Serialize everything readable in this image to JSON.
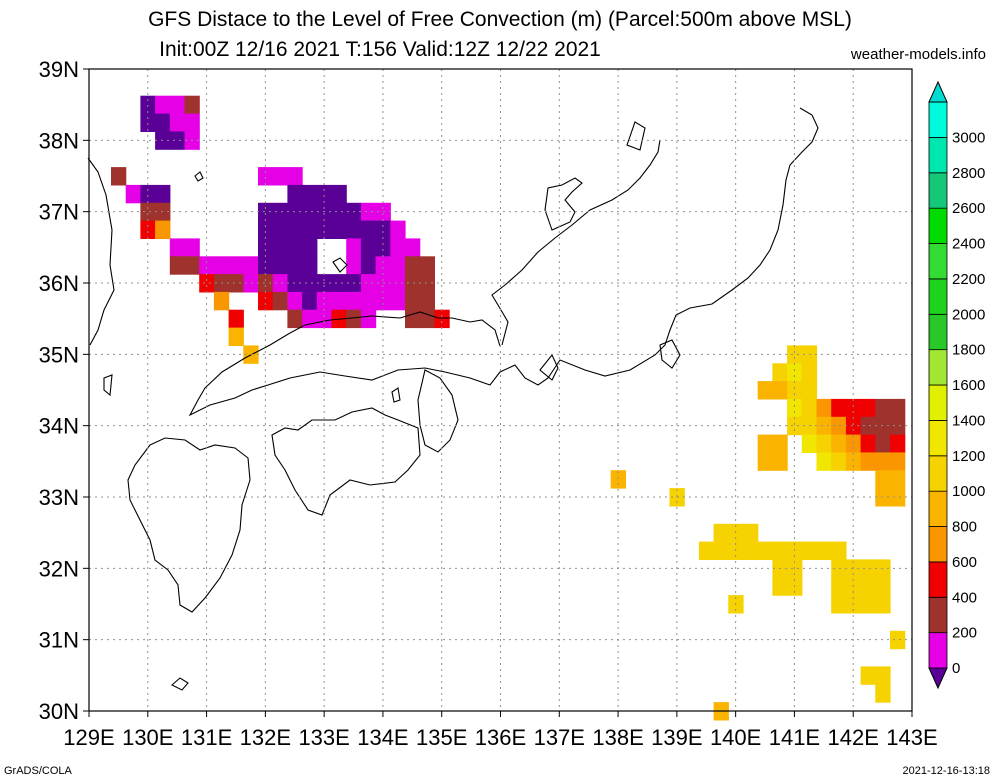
{
  "title_line1": "GFS Distace to the Level of Free Convection (m) (Parcel:500m above MSL)",
  "title_line2": "Init:00Z 12/16 2021 T:156 Valid:12Z 12/22 2021",
  "site": "weather-models.info",
  "footer_left": "GrADS/COLA",
  "footer_right": "2021-12-16-13:18",
  "lon_labels": [
    "129E",
    "130E",
    "131E",
    "132E",
    "133E",
    "134E",
    "135E",
    "136E",
    "137E",
    "138E",
    "139E",
    "140E",
    "141E",
    "142E",
    "143E"
  ],
  "lat_labels": [
    "30N",
    "31N",
    "32N",
    "33N",
    "34N",
    "35N",
    "36N",
    "37N",
    "38N",
    "39N"
  ],
  "colorbar": {
    "labels": [
      "0",
      "200",
      "400",
      "600",
      "800",
      "1000",
      "1200",
      "1400",
      "1600",
      "1800",
      "2000",
      "2200",
      "2400",
      "2600",
      "2800",
      "3000"
    ],
    "colors": [
      "#e600e6",
      "#a0322d",
      "#f00000",
      "#fa9600",
      "#fab400",
      "#f5d200",
      "#f0e600",
      "#e0f000",
      "#a0e632",
      "#28c828",
      "#1ed21e",
      "#32dc32",
      "#00dc00",
      "#14c878",
      "#00e6af",
      "#00fadc"
    ],
    "below_color": "#5a0096",
    "above_color": "#00dcd2"
  },
  "chart_data": {
    "type": "heatmap",
    "title": "GFS Distace to the Level of Free Convection (m) (Parcel:500m above MSL)",
    "subtitle": "Init:00Z 12/16 2021 T:156 Valid:12Z 12/22 2021",
    "xlim": [
      129,
      143
    ],
    "ylim": [
      30,
      39
    ],
    "grid": true,
    "units": "m",
    "cells": [
      {
        "lon": 130.0,
        "lat": 38.5,
        "v": -1
      },
      {
        "lon": 130.25,
        "lat": 38.5,
        "v": 100
      },
      {
        "lon": 130.5,
        "lat": 38.5,
        "v": 100
      },
      {
        "lon": 130.75,
        "lat": 38.5,
        "v": 300
      },
      {
        "lon": 130.0,
        "lat": 38.25,
        "v": -1
      },
      {
        "lon": 130.25,
        "lat": 38.25,
        "v": -1
      },
      {
        "lon": 130.5,
        "lat": 38.25,
        "v": 100
      },
      {
        "lon": 130.75,
        "lat": 38.25,
        "v": 100
      },
      {
        "lon": 130.25,
        "lat": 38.0,
        "v": -1
      },
      {
        "lon": 130.5,
        "lat": 38.0,
        "v": -1
      },
      {
        "lon": 130.75,
        "lat": 38.0,
        "v": 100
      },
      {
        "lon": 129.5,
        "lat": 37.5,
        "v": 300
      },
      {
        "lon": 129.75,
        "lat": 37.25,
        "v": 100
      },
      {
        "lon": 130.0,
        "lat": 37.25,
        "v": -1
      },
      {
        "lon": 130.25,
        "lat": 37.25,
        "v": -1
      },
      {
        "lon": 130.0,
        "lat": 37.0,
        "v": 300
      },
      {
        "lon": 130.25,
        "lat": 37.0,
        "v": 300
      },
      {
        "lon": 130.0,
        "lat": 36.75,
        "v": 500
      },
      {
        "lon": 130.25,
        "lat": 36.75,
        "v": 700
      },
      {
        "lon": 132.0,
        "lat": 37.5,
        "v": 100
      },
      {
        "lon": 132.25,
        "lat": 37.5,
        "v": 100
      },
      {
        "lon": 132.5,
        "lat": 37.5,
        "v": 100
      },
      {
        "lon": 132.5,
        "lat": 37.25,
        "v": -1
      },
      {
        "lon": 132.75,
        "lat": 37.25,
        "v": -1
      },
      {
        "lon": 133.0,
        "lat": 37.25,
        "v": -1
      },
      {
        "lon": 133.25,
        "lat": 37.25,
        "v": -1
      },
      {
        "lon": 132.0,
        "lat": 37.0,
        "v": -1
      },
      {
        "lon": 132.25,
        "lat": 37.0,
        "v": -1
      },
      {
        "lon": 132.5,
        "lat": 37.0,
        "v": -1
      },
      {
        "lon": 132.75,
        "lat": 37.0,
        "v": -1
      },
      {
        "lon": 133.0,
        "lat": 37.0,
        "v": -1
      },
      {
        "lon": 133.25,
        "lat": 37.0,
        "v": -1
      },
      {
        "lon": 133.5,
        "lat": 37.0,
        "v": -1
      },
      {
        "lon": 133.75,
        "lat": 37.0,
        "v": 100
      },
      {
        "lon": 134.0,
        "lat": 37.0,
        "v": 100
      },
      {
        "lon": 132.0,
        "lat": 36.75,
        "v": -1
      },
      {
        "lon": 132.25,
        "lat": 36.75,
        "v": -1
      },
      {
        "lon": 132.5,
        "lat": 36.75,
        "v": -1
      },
      {
        "lon": 132.75,
        "lat": 36.75,
        "v": -1
      },
      {
        "lon": 133.0,
        "lat": 36.75,
        "v": -1
      },
      {
        "lon": 133.25,
        "lat": 36.75,
        "v": -1
      },
      {
        "lon": 133.5,
        "lat": 36.75,
        "v": -1
      },
      {
        "lon": 133.75,
        "lat": 36.75,
        "v": -1
      },
      {
        "lon": 134.0,
        "lat": 36.75,
        "v": -1
      },
      {
        "lon": 134.25,
        "lat": 36.75,
        "v": 100
      },
      {
        "lon": 130.5,
        "lat": 36.5,
        "v": 100
      },
      {
        "lon": 130.75,
        "lat": 36.5,
        "v": 100
      },
      {
        "lon": 132.0,
        "lat": 36.5,
        "v": -1
      },
      {
        "lon": 132.25,
        "lat": 36.5,
        "v": -1
      },
      {
        "lon": 132.5,
        "lat": 36.5,
        "v": -1
      },
      {
        "lon": 132.75,
        "lat": 36.5,
        "v": -1
      },
      {
        "lon": 133.5,
        "lat": 36.5,
        "v": 100
      },
      {
        "lon": 133.75,
        "lat": 36.5,
        "v": -1
      },
      {
        "lon": 134.0,
        "lat": 36.5,
        "v": -1
      },
      {
        "lon": 134.25,
        "lat": 36.5,
        "v": 100
      },
      {
        "lon": 134.5,
        "lat": 36.5,
        "v": 100
      },
      {
        "lon": 130.5,
        "lat": 36.25,
        "v": 300
      },
      {
        "lon": 130.75,
        "lat": 36.25,
        "v": 300
      },
      {
        "lon": 131.0,
        "lat": 36.25,
        "v": 100
      },
      {
        "lon": 131.25,
        "lat": 36.25,
        "v": 100
      },
      {
        "lon": 131.5,
        "lat": 36.25,
        "v": 100
      },
      {
        "lon": 131.75,
        "lat": 36.25,
        "v": 100
      },
      {
        "lon": 132.0,
        "lat": 36.25,
        "v": -1
      },
      {
        "lon": 132.25,
        "lat": 36.25,
        "v": -1
      },
      {
        "lon": 132.5,
        "lat": 36.25,
        "v": -1
      },
      {
        "lon": 132.75,
        "lat": 36.25,
        "v": -1
      },
      {
        "lon": 133.5,
        "lat": 36.25,
        "v": 100
      },
      {
        "lon": 133.75,
        "lat": 36.25,
        "v": -1
      },
      {
        "lon": 134.0,
        "lat": 36.25,
        "v": 100
      },
      {
        "lon": 134.25,
        "lat": 36.25,
        "v": 100
      },
      {
        "lon": 134.5,
        "lat": 36.25,
        "v": 300
      },
      {
        "lon": 134.75,
        "lat": 36.25,
        "v": 300
      },
      {
        "lon": 131.0,
        "lat": 36.0,
        "v": 500
      },
      {
        "lon": 131.25,
        "lat": 36.0,
        "v": 300
      },
      {
        "lon": 131.5,
        "lat": 36.0,
        "v": 300
      },
      {
        "lon": 131.75,
        "lat": 36.0,
        "v": 100
      },
      {
        "lon": 132.0,
        "lat": 36.0,
        "v": 300
      },
      {
        "lon": 132.25,
        "lat": 36.0,
        "v": 100
      },
      {
        "lon": 132.5,
        "lat": 36.0,
        "v": -1
      },
      {
        "lon": 132.75,
        "lat": 36.0,
        "v": -1
      },
      {
        "lon": 133.0,
        "lat": 36.0,
        "v": -1
      },
      {
        "lon": 133.25,
        "lat": 36.0,
        "v": -1
      },
      {
        "lon": 133.5,
        "lat": 36.0,
        "v": -1
      },
      {
        "lon": 133.75,
        "lat": 36.0,
        "v": 100
      },
      {
        "lon": 134.0,
        "lat": 36.0,
        "v": 100
      },
      {
        "lon": 134.25,
        "lat": 36.0,
        "v": 100
      },
      {
        "lon": 134.5,
        "lat": 36.0,
        "v": 300
      },
      {
        "lon": 134.75,
        "lat": 36.0,
        "v": 300
      },
      {
        "lon": 131.25,
        "lat": 35.75,
        "v": 700
      },
      {
        "lon": 132.0,
        "lat": 35.75,
        "v": 500
      },
      {
        "lon": 132.25,
        "lat": 35.75,
        "v": 300
      },
      {
        "lon": 132.5,
        "lat": 35.75,
        "v": 100
      },
      {
        "lon": 132.75,
        "lat": 35.75,
        "v": -1
      },
      {
        "lon": 133.0,
        "lat": 35.75,
        "v": 100
      },
      {
        "lon": 133.25,
        "lat": 35.75,
        "v": 100
      },
      {
        "lon": 133.5,
        "lat": 35.75,
        "v": 100
      },
      {
        "lon": 133.75,
        "lat": 35.75,
        "v": 100
      },
      {
        "lon": 134.0,
        "lat": 35.75,
        "v": 100
      },
      {
        "lon": 134.25,
        "lat": 35.75,
        "v": 100
      },
      {
        "lon": 134.5,
        "lat": 35.75,
        "v": 300
      },
      {
        "lon": 134.75,
        "lat": 35.75,
        "v": 300
      },
      {
        "lon": 132.5,
        "lat": 35.5,
        "v": 300
      },
      {
        "lon": 132.75,
        "lat": 35.5,
        "v": 100
      },
      {
        "lon": 133.0,
        "lat": 35.5,
        "v": 100
      },
      {
        "lon": 133.25,
        "lat": 35.5,
        "v": 500
      },
      {
        "lon": 133.5,
        "lat": 35.5,
        "v": 300
      },
      {
        "lon": 133.75,
        "lat": 35.5,
        "v": 100
      },
      {
        "lon": 134.5,
        "lat": 35.5,
        "v": 300
      },
      {
        "lon": 134.75,
        "lat": 35.5,
        "v": 300
      },
      {
        "lon": 135.0,
        "lat": 35.5,
        "v": 500
      },
      {
        "lon": 131.5,
        "lat": 35.5,
        "v": 500
      },
      {
        "lon": 131.5,
        "lat": 35.25,
        "v": 900
      },
      {
        "lon": 131.75,
        "lat": 35.0,
        "v": 900
      },
      {
        "lon": 141.0,
        "lat": 35.0,
        "v": 1100
      },
      {
        "lon": 141.25,
        "lat": 35.0,
        "v": 1100
      },
      {
        "lon": 140.75,
        "lat": 34.75,
        "v": 1100
      },
      {
        "lon": 141.0,
        "lat": 34.75,
        "v": 1300
      },
      {
        "lon": 141.25,
        "lat": 34.75,
        "v": 1100
      },
      {
        "lon": 140.5,
        "lat": 34.5,
        "v": 900
      },
      {
        "lon": 140.75,
        "lat": 34.5,
        "v": 900
      },
      {
        "lon": 141.0,
        "lat": 34.5,
        "v": 1100
      },
      {
        "lon": 141.25,
        "lat": 34.5,
        "v": 1100
      },
      {
        "lon": 141.0,
        "lat": 34.25,
        "v": 1300
      },
      {
        "lon": 141.25,
        "lat": 34.25,
        "v": 1100
      },
      {
        "lon": 141.5,
        "lat": 34.25,
        "v": 700
      },
      {
        "lon": 141.75,
        "lat": 34.25,
        "v": 500
      },
      {
        "lon": 142.0,
        "lat": 34.25,
        "v": 500
      },
      {
        "lon": 142.25,
        "lat": 34.25,
        "v": 500
      },
      {
        "lon": 142.5,
        "lat": 34.25,
        "v": 300
      },
      {
        "lon": 142.75,
        "lat": 34.25,
        "v": 300
      },
      {
        "lon": 141.0,
        "lat": 34.0,
        "v": 1100
      },
      {
        "lon": 141.25,
        "lat": 34.0,
        "v": 1100
      },
      {
        "lon": 141.5,
        "lat": 34.0,
        "v": 900
      },
      {
        "lon": 141.75,
        "lat": 34.0,
        "v": 700
      },
      {
        "lon": 142.0,
        "lat": 34.0,
        "v": 500
      },
      {
        "lon": 142.25,
        "lat": 34.0,
        "v": 300
      },
      {
        "lon": 142.5,
        "lat": 34.0,
        "v": 300
      },
      {
        "lon": 142.75,
        "lat": 34.0,
        "v": 300
      },
      {
        "lon": 140.5,
        "lat": 33.75,
        "v": 900
      },
      {
        "lon": 140.75,
        "lat": 33.75,
        "v": 900
      },
      {
        "lon": 141.25,
        "lat": 33.75,
        "v": 1300
      },
      {
        "lon": 141.5,
        "lat": 33.75,
        "v": 1100
      },
      {
        "lon": 141.75,
        "lat": 33.75,
        "v": 900
      },
      {
        "lon": 142.0,
        "lat": 33.75,
        "v": 700
      },
      {
        "lon": 142.25,
        "lat": 33.75,
        "v": 500
      },
      {
        "lon": 142.5,
        "lat": 33.75,
        "v": 300
      },
      {
        "lon": 142.75,
        "lat": 33.75,
        "v": 500
      },
      {
        "lon": 140.5,
        "lat": 33.5,
        "v": 900
      },
      {
        "lon": 140.75,
        "lat": 33.5,
        "v": 900
      },
      {
        "lon": 141.5,
        "lat": 33.5,
        "v": 1300
      },
      {
        "lon": 141.75,
        "lat": 33.5,
        "v": 1100
      },
      {
        "lon": 142.0,
        "lat": 33.5,
        "v": 900
      },
      {
        "lon": 142.25,
        "lat": 33.5,
        "v": 700
      },
      {
        "lon": 142.5,
        "lat": 33.5,
        "v": 700
      },
      {
        "lon": 142.75,
        "lat": 33.5,
        "v": 700
      },
      {
        "lon": 142.5,
        "lat": 33.25,
        "v": 900
      },
      {
        "lon": 142.75,
        "lat": 33.25,
        "v": 900
      },
      {
        "lon": 142.5,
        "lat": 33.0,
        "v": 900
      },
      {
        "lon": 142.75,
        "lat": 33.0,
        "v": 900
      },
      {
        "lon": 138.0,
        "lat": 33.25,
        "v": 900
      },
      {
        "lon": 139.0,
        "lat": 33.0,
        "v": 1100
      },
      {
        "lon": 139.75,
        "lat": 32.5,
        "v": 1100
      },
      {
        "lon": 140.0,
        "lat": 32.5,
        "v": 1100
      },
      {
        "lon": 140.25,
        "lat": 32.5,
        "v": 1100
      },
      {
        "lon": 139.5,
        "lat": 32.25,
        "v": 1100
      },
      {
        "lon": 139.75,
        "lat": 32.25,
        "v": 1100
      },
      {
        "lon": 140.0,
        "lat": 32.25,
        "v": 1100
      },
      {
        "lon": 140.25,
        "lat": 32.25,
        "v": 1100
      },
      {
        "lon": 140.5,
        "lat": 32.25,
        "v": 1100
      },
      {
        "lon": 140.75,
        "lat": 32.25,
        "v": 1100
      },
      {
        "lon": 141.0,
        "lat": 32.25,
        "v": 1100
      },
      {
        "lon": 141.25,
        "lat": 32.25,
        "v": 1100
      },
      {
        "lon": 141.5,
        "lat": 32.25,
        "v": 1100
      },
      {
        "lon": 141.75,
        "lat": 32.25,
        "v": 1100
      },
      {
        "lon": 140.75,
        "lat": 32.0,
        "v": 1100
      },
      {
        "lon": 141.0,
        "lat": 32.0,
        "v": 1100
      },
      {
        "lon": 141.75,
        "lat": 32.0,
        "v": 1100
      },
      {
        "lon": 142.0,
        "lat": 32.0,
        "v": 1100
      },
      {
        "lon": 142.25,
        "lat": 32.0,
        "v": 1100
      },
      {
        "lon": 142.5,
        "lat": 32.0,
        "v": 1100
      },
      {
        "lon": 140.75,
        "lat": 31.75,
        "v": 1100
      },
      {
        "lon": 141.0,
        "lat": 31.75,
        "v": 1100
      },
      {
        "lon": 141.75,
        "lat": 31.75,
        "v": 1100
      },
      {
        "lon": 142.0,
        "lat": 31.75,
        "v": 1100
      },
      {
        "lon": 142.25,
        "lat": 31.75,
        "v": 1000
      },
      {
        "lon": 142.5,
        "lat": 31.75,
        "v": 1100
      },
      {
        "lon": 141.75,
        "lat": 31.5,
        "v": 1100
      },
      {
        "lon": 142.0,
        "lat": 31.5,
        "v": 1100
      },
      {
        "lon": 142.25,
        "lat": 31.5,
        "v": 1100
      },
      {
        "lon": 142.5,
        "lat": 31.5,
        "v": 1100
      },
      {
        "lon": 140.0,
        "lat": 31.5,
        "v": 1100
      },
      {
        "lon": 142.75,
        "lat": 31.0,
        "v": 1100
      },
      {
        "lon": 142.25,
        "lat": 30.5,
        "v": 1100
      },
      {
        "lon": 142.5,
        "lat": 30.5,
        "v": 1100
      },
      {
        "lon": 142.5,
        "lat": 30.25,
        "v": 1100
      },
      {
        "lon": 139.75,
        "lat": 30.0,
        "v": 900
      }
    ]
  }
}
